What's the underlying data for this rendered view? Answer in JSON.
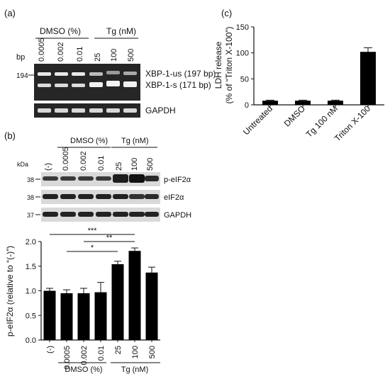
{
  "panels": {
    "a": {
      "label": "(a)",
      "bp_label": "bp",
      "marker_194": "194",
      "group_dmso": "DMSO (%)",
      "group_tg": "Tg (nM)",
      "lanes": [
        "0.0005",
        "0.002",
        "0.01",
        "25",
        "100",
        "500"
      ],
      "band_us": "XBP-1-us (197 bp)",
      "band_s": "XBP-1-s (171 bp)",
      "band_gapdh": "GAPDH"
    },
    "b": {
      "label": "(b)",
      "kda_label": "kDa",
      "group_dmso": "DMSO (%)",
      "group_tg": "Tg (nM)",
      "lanes": [
        "(-)",
        "0.0005",
        "0.002",
        "0.01",
        "25",
        "100",
        "500"
      ],
      "markers": [
        "38",
        "38",
        "37"
      ],
      "blot_labels": [
        "p-eIF2α",
        "eIF2α",
        "GAPDH"
      ]
    },
    "c": {
      "label": "(c)"
    }
  },
  "chart_data": [
    {
      "type": "bar",
      "panel": "b",
      "categories": [
        "(-)",
        "0.0005",
        "0.002",
        "0.01",
        "25",
        "100",
        "500"
      ],
      "values": [
        1.0,
        0.95,
        0.95,
        0.97,
        1.54,
        1.81,
        1.37
      ],
      "errors": [
        0.05,
        0.07,
        0.1,
        0.2,
        0.06,
        0.06,
        0.11
      ],
      "ylabel": "p-eIF2α (relative to “(-)”)",
      "ylim": [
        0,
        2.0
      ],
      "yticks": [
        "0.0",
        "0.5",
        "1.0",
        "1.5",
        "2.0"
      ],
      "group_labels": [
        "DMSO (%)",
        "Tg (nM)"
      ],
      "significance": [
        {
          "from": "(-)",
          "to": "100",
          "label": "***"
        },
        {
          "from": "0.002",
          "to": "100",
          "label": "**"
        },
        {
          "from": "0.0005",
          "to": "25",
          "label": "*"
        }
      ],
      "bar_color": "#000000",
      "grid": false
    },
    {
      "type": "bar",
      "panel": "c",
      "categories": [
        "Untreated",
        "DMSO",
        "Tg 100 nM",
        "Triton X-100"
      ],
      "values": [
        8,
        8,
        8,
        102
      ],
      "errors": [
        1,
        1,
        1,
        8
      ],
      "ylabel": "LDH release\n(% of “Triton X-100”)",
      "ylim": [
        0,
        150
      ],
      "yticks": [
        "0",
        "50",
        "100",
        "150"
      ],
      "bar_color": "#000000",
      "grid": false
    }
  ]
}
